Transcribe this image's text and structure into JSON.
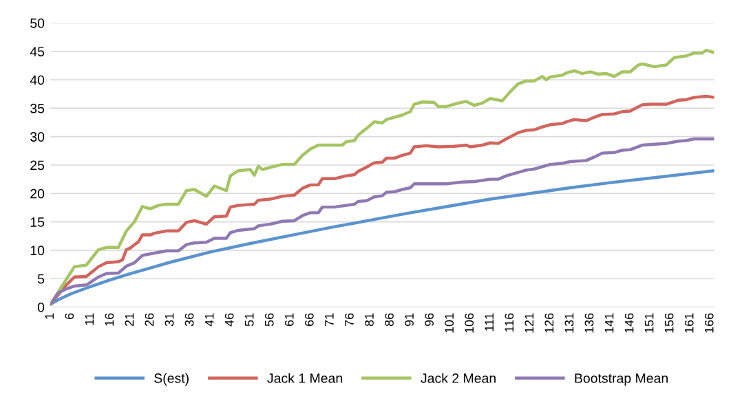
{
  "chart_data": {
    "type": "line",
    "series": [
      {
        "name": "S(est)",
        "color": "#5b93cf",
        "x": [
          1,
          3,
          6,
          11,
          16,
          21,
          26,
          31,
          41,
          51,
          61,
          71,
          81,
          91,
          101,
          111,
          121,
          131,
          141,
          151,
          167
        ],
        "values": [
          0.5,
          1.3,
          2.3,
          3.6,
          4.8,
          5.9,
          6.9,
          7.9,
          9.7,
          11.2,
          12.6,
          14.0,
          15.3,
          16.6,
          17.8,
          19.0,
          20.0,
          21.0,
          21.9,
          22.7,
          24.0
        ]
      },
      {
        "name": "Jack 1 Mean",
        "color": "#d1655d",
        "x": [
          1,
          5,
          7,
          10,
          13,
          15,
          18,
          19,
          20,
          21,
          23,
          24,
          26,
          27,
          30,
          33,
          35,
          37,
          40,
          42,
          45,
          46,
          48,
          52,
          53,
          56,
          59,
          62,
          64,
          66,
          68,
          69,
          72,
          75,
          77,
          78,
          80,
          82,
          84,
          85,
          87,
          89,
          91,
          92,
          95,
          98,
          102,
          105,
          106,
          109,
          111,
          113,
          115,
          118,
          120,
          122,
          124,
          126,
          129,
          130,
          132,
          135,
          137,
          139,
          142,
          144,
          146,
          149,
          151,
          155,
          158,
          160,
          162,
          165,
          167
        ],
        "values": [
          0.5,
          3.9,
          5.3,
          5.4,
          7.1,
          7.8,
          8.0,
          8.3,
          10.1,
          10.4,
          11.5,
          12.7,
          12.7,
          13.0,
          13.4,
          13.4,
          14.9,
          15.2,
          14.6,
          15.9,
          16.0,
          17.6,
          17.9,
          18.1,
          18.8,
          19.0,
          19.5,
          19.7,
          20.9,
          21.5,
          21.5,
          22.6,
          22.6,
          23.1,
          23.3,
          23.9,
          24.6,
          25.4,
          25.5,
          26.2,
          26.2,
          26.7,
          27.1,
          28.2,
          28.4,
          28.2,
          28.3,
          28.5,
          28.2,
          28.5,
          28.9,
          28.8,
          29.6,
          30.7,
          31.1,
          31.2,
          31.7,
          32.1,
          32.3,
          32.6,
          33.0,
          32.8,
          33.4,
          33.9,
          34.0,
          34.4,
          34.5,
          35.6,
          35.7,
          35.7,
          36.4,
          36.5,
          36.9,
          37.1,
          36.9
        ]
      },
      {
        "name": "Jack 2 Mean",
        "color": "#a5c563",
        "x": [
          1,
          5,
          7,
          10,
          13,
          15,
          18,
          20,
          22,
          24,
          26,
          28,
          30,
          33,
          35,
          37,
          40,
          42,
          45,
          46,
          48,
          51,
          52,
          53,
          54,
          56,
          59,
          62,
          64,
          66,
          68,
          74,
          75,
          77,
          78,
          80,
          82,
          84,
          85,
          87,
          89,
          91,
          92,
          94,
          97,
          98,
          100,
          103,
          105,
          107,
          109,
          111,
          114,
          116,
          118,
          120,
          122,
          124,
          125,
          126,
          129,
          130,
          132,
          134,
          136,
          138,
          140,
          142,
          144,
          146,
          148,
          149,
          152,
          155,
          157,
          160,
          162,
          164,
          165,
          167
        ],
        "values": [
          0.5,
          4.9,
          7.1,
          7.4,
          10.1,
          10.5,
          10.5,
          13.4,
          15.0,
          17.7,
          17.3,
          17.9,
          18.1,
          18.1,
          20.5,
          20.7,
          19.5,
          21.3,
          20.5,
          23.1,
          24.0,
          24.2,
          23.2,
          24.8,
          24.2,
          24.6,
          25.1,
          25.1,
          26.7,
          27.8,
          28.5,
          28.5,
          29.1,
          29.3,
          30.3,
          31.4,
          32.6,
          32.4,
          33.0,
          33.4,
          33.8,
          34.4,
          35.7,
          36.1,
          36.0,
          35.3,
          35.3,
          35.9,
          36.2,
          35.5,
          35.9,
          36.7,
          36.3,
          37.9,
          39.3,
          39.8,
          39.8,
          40.6,
          40.0,
          40.5,
          40.8,
          41.2,
          41.6,
          41.1,
          41.4,
          41.0,
          41.1,
          40.6,
          41.4,
          41.4,
          42.6,
          42.8,
          42.3,
          42.6,
          43.9,
          44.2,
          44.7,
          44.7,
          45.2,
          44.8
        ]
      },
      {
        "name": "Bootstrap Mean",
        "color": "#9079b2",
        "x": [
          1,
          3,
          5,
          7,
          10,
          13,
          15,
          18,
          20,
          22,
          24,
          27,
          30,
          33,
          35,
          37,
          40,
          42,
          45,
          46,
          48,
          52,
          53,
          56,
          59,
          62,
          64,
          66,
          68,
          69,
          72,
          75,
          77,
          78,
          80,
          82,
          84,
          85,
          87,
          89,
          91,
          92,
          95,
          100,
          104,
          107,
          111,
          113,
          115,
          118,
          120,
          122,
          124,
          126,
          129,
          131,
          135,
          137,
          139,
          142,
          144,
          146,
          149,
          151,
          155,
          158,
          160,
          162,
          167
        ],
        "values": [
          0.5,
          2.5,
          3.2,
          3.7,
          3.9,
          5.3,
          5.9,
          6.0,
          7.2,
          7.8,
          9.1,
          9.5,
          9.9,
          9.9,
          11.0,
          11.3,
          11.4,
          12.1,
          12.1,
          13.1,
          13.5,
          13.8,
          14.3,
          14.6,
          15.1,
          15.2,
          16.1,
          16.6,
          16.6,
          17.6,
          17.6,
          17.9,
          18.1,
          18.6,
          18.7,
          19.4,
          19.6,
          20.2,
          20.3,
          20.7,
          21.0,
          21.7,
          21.7,
          21.7,
          22.0,
          22.1,
          22.5,
          22.5,
          23.1,
          23.7,
          24.1,
          24.3,
          24.7,
          25.1,
          25.3,
          25.6,
          25.8,
          26.4,
          27.1,
          27.2,
          27.6,
          27.7,
          28.5,
          28.6,
          28.8,
          29.2,
          29.3,
          29.6,
          29.6
        ]
      }
    ],
    "xlim": [
      1,
      167
    ],
    "xticks": [
      1,
      6,
      11,
      16,
      21,
      26,
      31,
      36,
      41,
      46,
      51,
      56,
      61,
      66,
      71,
      76,
      81,
      86,
      91,
      96,
      101,
      106,
      111,
      116,
      121,
      126,
      131,
      136,
      141,
      146,
      151,
      156,
      161,
      166
    ],
    "ylim": [
      0,
      50
    ],
    "yticks": [
      0,
      5,
      10,
      15,
      20,
      25,
      30,
      35,
      40,
      45,
      50
    ],
    "grid": "y",
    "legend": "bottom",
    "marker": "none",
    "line_style": "solid"
  }
}
